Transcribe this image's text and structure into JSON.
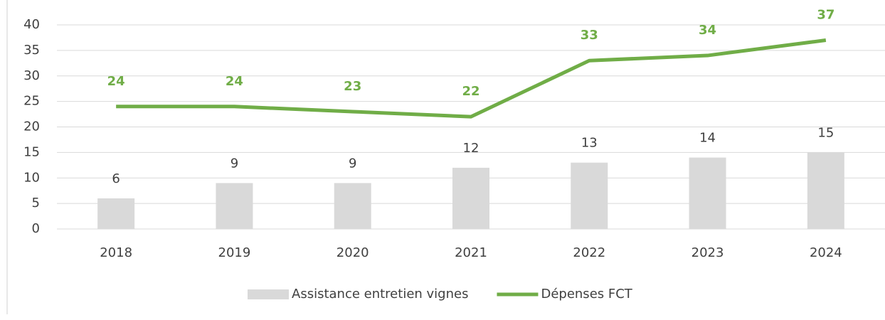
{
  "chart_data": {
    "type": "bar",
    "categories": [
      "2018",
      "2019",
      "2020",
      "2021",
      "2022",
      "2023",
      "2024"
    ],
    "series": [
      {
        "name": "Assistance entretien vignes",
        "type": "bar",
        "color": "#d9d9d9",
        "values": [
          6,
          9,
          9,
          12,
          13,
          14,
          15
        ]
      },
      {
        "name": "Dépenses FCT",
        "type": "line",
        "color": "#70ad47",
        "values": [
          24,
          24,
          23,
          22,
          33,
          34,
          37
        ]
      }
    ],
    "ylim": [
      0,
      40
    ],
    "yticks": [
      0,
      5,
      10,
      15,
      20,
      25,
      30,
      35,
      40
    ],
    "grid": true,
    "legend": "bottom"
  }
}
